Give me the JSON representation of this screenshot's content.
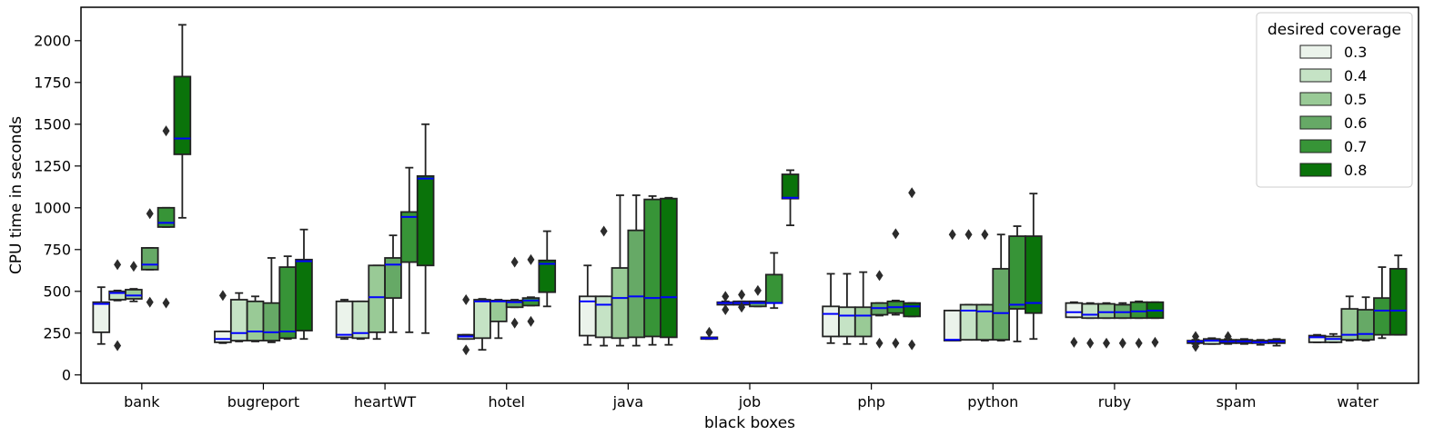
{
  "chart_data": {
    "type": "box",
    "xlabel": "black boxes",
    "ylabel": "CPU time in seconds",
    "ylim": [
      -50,
      2200
    ],
    "yticks": [
      0,
      250,
      500,
      750,
      1000,
      1250,
      1500,
      1750,
      2000
    ],
    "categories": [
      "bank",
      "bugreport",
      "heartWT",
      "hotel",
      "java",
      "job",
      "php",
      "python",
      "ruby",
      "spam",
      "water"
    ],
    "legend": {
      "title": "desired coverage",
      "position": "top-right"
    },
    "median_color": "#0000ff",
    "series": [
      {
        "name": "0.3",
        "color": "#ebf3eb",
        "boxes": [
          {
            "q1": 255,
            "med": 425,
            "q3": 435,
            "wlo": 185,
            "whi": 525,
            "fliers": []
          },
          {
            "q1": 195,
            "med": 215,
            "q3": 260,
            "wlo": 190,
            "whi": 260,
            "fliers": [
              475
            ]
          },
          {
            "q1": 225,
            "med": 240,
            "q3": 440,
            "wlo": 215,
            "whi": 450,
            "fliers": []
          },
          {
            "q1": 215,
            "med": 230,
            "q3": 240,
            "wlo": 215,
            "whi": 240,
            "fliers": [
              450,
              150
            ]
          },
          {
            "q1": 235,
            "med": 440,
            "q3": 470,
            "wlo": 180,
            "whi": 655,
            "fliers": []
          },
          {
            "q1": 215,
            "med": 220,
            "q3": 225,
            "wlo": 215,
            "whi": 225,
            "fliers": [
              255
            ]
          },
          {
            "q1": 230,
            "med": 365,
            "q3": 410,
            "wlo": 190,
            "whi": 605,
            "fliers": []
          },
          {
            "q1": 205,
            "med": 210,
            "q3": 385,
            "wlo": 205,
            "whi": 385,
            "fliers": [
              840
            ]
          },
          {
            "q1": 345,
            "med": 375,
            "q3": 430,
            "wlo": 345,
            "whi": 435,
            "fliers": [
              195
            ]
          },
          {
            "q1": 190,
            "med": 200,
            "q3": 205,
            "wlo": 185,
            "whi": 210,
            "fliers": [
              230,
              170
            ]
          },
          {
            "q1": 195,
            "med": 225,
            "q3": 235,
            "wlo": 195,
            "whi": 240,
            "fliers": []
          }
        ]
      },
      {
        "name": "0.4",
        "color": "#c5e3c5",
        "boxes": [
          {
            "q1": 450,
            "med": 490,
            "q3": 500,
            "wlo": 445,
            "whi": 505,
            "fliers": [
              660,
              175
            ]
          },
          {
            "q1": 205,
            "med": 250,
            "q3": 450,
            "wlo": 200,
            "whi": 490,
            "fliers": []
          },
          {
            "q1": 220,
            "med": 250,
            "q3": 440,
            "wlo": 215,
            "whi": 440,
            "fliers": []
          },
          {
            "q1": 220,
            "med": 440,
            "q3": 450,
            "wlo": 150,
            "whi": 455,
            "fliers": []
          },
          {
            "q1": 225,
            "med": 420,
            "q3": 470,
            "wlo": 175,
            "whi": 470,
            "fliers": [
              860
            ]
          },
          {
            "q1": 420,
            "med": 430,
            "q3": 435,
            "wlo": 420,
            "whi": 440,
            "fliers": [
              470,
              390
            ]
          },
          {
            "q1": 230,
            "med": 355,
            "q3": 405,
            "wlo": 185,
            "whi": 605,
            "fliers": []
          },
          {
            "q1": 210,
            "med": 385,
            "q3": 420,
            "wlo": 210,
            "whi": 420,
            "fliers": [
              840
            ]
          },
          {
            "q1": 340,
            "med": 360,
            "q3": 425,
            "wlo": 340,
            "whi": 430,
            "fliers": [
              190
            ]
          },
          {
            "q1": 185,
            "med": 205,
            "q3": 215,
            "wlo": 185,
            "whi": 220,
            "fliers": []
          },
          {
            "q1": 195,
            "med": 215,
            "q3": 230,
            "wlo": 195,
            "whi": 245,
            "fliers": []
          }
        ]
      },
      {
        "name": "0.5",
        "color": "#99ca96",
        "boxes": [
          {
            "q1": 455,
            "med": 475,
            "q3": 510,
            "wlo": 440,
            "whi": 515,
            "fliers": [
              650
            ]
          },
          {
            "q1": 205,
            "med": 260,
            "q3": 440,
            "wlo": 200,
            "whi": 470,
            "fliers": []
          },
          {
            "q1": 255,
            "med": 465,
            "q3": 655,
            "wlo": 215,
            "whi": 655,
            "fliers": []
          },
          {
            "q1": 320,
            "med": 440,
            "q3": 445,
            "wlo": 220,
            "whi": 450,
            "fliers": []
          },
          {
            "q1": 220,
            "med": 460,
            "q3": 640,
            "wlo": 175,
            "whi": 1075,
            "fliers": []
          },
          {
            "q1": 420,
            "med": 430,
            "q3": 440,
            "wlo": 420,
            "whi": 440,
            "fliers": [
              480,
              405
            ]
          },
          {
            "q1": 230,
            "med": 355,
            "q3": 405,
            "wlo": 185,
            "whi": 615,
            "fliers": []
          },
          {
            "q1": 210,
            "med": 380,
            "q3": 420,
            "wlo": 205,
            "whi": 420,
            "fliers": [
              840
            ]
          },
          {
            "q1": 340,
            "med": 375,
            "q3": 425,
            "wlo": 340,
            "whi": 430,
            "fliers": [
              190
            ]
          },
          {
            "q1": 190,
            "med": 200,
            "q3": 210,
            "wlo": 185,
            "whi": 215,
            "fliers": [
              230
            ]
          },
          {
            "q1": 210,
            "med": 240,
            "q3": 395,
            "wlo": 205,
            "whi": 470,
            "fliers": []
          }
        ]
      },
      {
        "name": "0.6",
        "color": "#66a966",
        "boxes": [
          {
            "q1": 630,
            "med": 660,
            "q3": 760,
            "wlo": 630,
            "whi": 760,
            "fliers": [
              965,
              435
            ]
          },
          {
            "q1": 205,
            "med": 255,
            "q3": 430,
            "wlo": 195,
            "whi": 700,
            "fliers": []
          },
          {
            "q1": 460,
            "med": 660,
            "q3": 700,
            "wlo": 255,
            "whi": 835,
            "fliers": []
          },
          {
            "q1": 405,
            "med": 435,
            "q3": 445,
            "wlo": 405,
            "whi": 450,
            "fliers": [
              675,
              310
            ]
          },
          {
            "q1": 225,
            "med": 470,
            "q3": 865,
            "wlo": 175,
            "whi": 1075,
            "fliers": []
          },
          {
            "q1": 410,
            "med": 430,
            "q3": 440,
            "wlo": 410,
            "whi": 440,
            "fliers": [
              505
            ]
          },
          {
            "q1": 360,
            "med": 400,
            "q3": 430,
            "wlo": 355,
            "whi": 430,
            "fliers": [
              595,
              190
            ]
          },
          {
            "q1": 210,
            "med": 370,
            "q3": 635,
            "wlo": 205,
            "whi": 840,
            "fliers": []
          },
          {
            "q1": 340,
            "med": 375,
            "q3": 420,
            "wlo": 340,
            "whi": 430,
            "fliers": [
              190
            ]
          },
          {
            "q1": 190,
            "med": 200,
            "q3": 210,
            "wlo": 185,
            "whi": 215,
            "fliers": []
          },
          {
            "q1": 210,
            "med": 245,
            "q3": 390,
            "wlo": 205,
            "whi": 465,
            "fliers": []
          }
        ]
      },
      {
        "name": "0.7",
        "color": "#379437",
        "boxes": [
          {
            "q1": 885,
            "med": 910,
            "q3": 1000,
            "wlo": 885,
            "whi": 1000,
            "fliers": [
              1460,
              430
            ]
          },
          {
            "q1": 220,
            "med": 260,
            "q3": 645,
            "wlo": 215,
            "whi": 710,
            "fliers": []
          },
          {
            "q1": 675,
            "med": 945,
            "q3": 975,
            "wlo": 255,
            "whi": 1240,
            "fliers": []
          },
          {
            "q1": 415,
            "med": 445,
            "q3": 460,
            "wlo": 415,
            "whi": 465,
            "fliers": [
              690,
              320
            ]
          },
          {
            "q1": 230,
            "med": 460,
            "q3": 1050,
            "wlo": 180,
            "whi": 1070,
            "fliers": []
          },
          {
            "q1": 430,
            "med": 430,
            "q3": 600,
            "wlo": 400,
            "whi": 730,
            "fliers": []
          },
          {
            "q1": 370,
            "med": 405,
            "q3": 440,
            "wlo": 360,
            "whi": 445,
            "fliers": [
              845,
              190
            ]
          },
          {
            "q1": 395,
            "med": 420,
            "q3": 830,
            "wlo": 200,
            "whi": 890,
            "fliers": []
          },
          {
            "q1": 340,
            "med": 380,
            "q3": 435,
            "wlo": 340,
            "whi": 440,
            "fliers": [
              190
            ]
          },
          {
            "q1": 190,
            "med": 195,
            "q3": 205,
            "wlo": 180,
            "whi": 210,
            "fliers": []
          },
          {
            "q1": 240,
            "med": 385,
            "q3": 460,
            "wlo": 220,
            "whi": 645,
            "fliers": []
          }
        ]
      },
      {
        "name": "0.8",
        "color": "#0a730a",
        "boxes": [
          {
            "q1": 1320,
            "med": 1415,
            "q3": 1785,
            "wlo": 940,
            "whi": 2095,
            "fliers": []
          },
          {
            "q1": 265,
            "med": 680,
            "q3": 690,
            "wlo": 215,
            "whi": 870,
            "fliers": []
          },
          {
            "q1": 655,
            "med": 1175,
            "q3": 1190,
            "wlo": 250,
            "whi": 1500,
            "fliers": []
          },
          {
            "q1": 495,
            "med": 665,
            "q3": 685,
            "wlo": 410,
            "whi": 860,
            "fliers": []
          },
          {
            "q1": 225,
            "med": 465,
            "q3": 1055,
            "wlo": 180,
            "whi": 1060,
            "fliers": []
          },
          {
            "q1": 1055,
            "med": 1060,
            "q3": 1200,
            "wlo": 895,
            "whi": 1225,
            "fliers": []
          },
          {
            "q1": 350,
            "med": 410,
            "q3": 430,
            "wlo": 350,
            "whi": 430,
            "fliers": [
              1090,
              180
            ]
          },
          {
            "q1": 370,
            "med": 430,
            "q3": 830,
            "wlo": 215,
            "whi": 1085,
            "fliers": []
          },
          {
            "q1": 340,
            "med": 385,
            "q3": 435,
            "wlo": 340,
            "whi": 435,
            "fliers": [
              195
            ]
          },
          {
            "q1": 190,
            "med": 200,
            "q3": 210,
            "wlo": 175,
            "whi": 215,
            "fliers": []
          },
          {
            "q1": 240,
            "med": 385,
            "q3": 635,
            "wlo": 240,
            "whi": 715,
            "fliers": []
          }
        ]
      }
    ]
  }
}
